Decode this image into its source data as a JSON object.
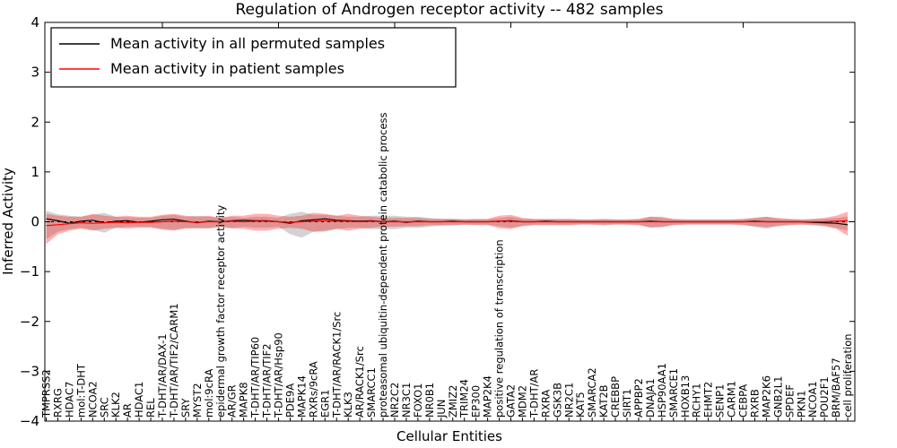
{
  "figure": {
    "title": "Regulation of Androgen receptor activity -- 482 samples",
    "xlabel": "Cellular Entities",
    "ylabel": "Inferred Activity",
    "background_color": "#ffffff",
    "axis_color": "#000000"
  },
  "legend": {
    "items": [
      {
        "label": "Mean activity in all permuted samples",
        "color": "#000000"
      },
      {
        "label": "Mean activity in patient samples",
        "color": "#ff0000"
      }
    ]
  },
  "chart_data": {
    "type": "line",
    "title": "Regulation of Androgen receptor activity -- 482 samples",
    "xlabel": "Cellular Entities",
    "ylabel": "Inferred Activity",
    "ylim": [
      -4,
      4
    ],
    "yticks": [
      -4,
      -3,
      -2,
      -1,
      0,
      1,
      2,
      3,
      4
    ],
    "grid": false,
    "legend_position": "upper left",
    "zero_line": {
      "style": "dashed",
      "color": "#000000"
    },
    "categories": [
      "TMPRSS2",
      "RXRG",
      "HDAC7",
      "mol:T-DHT",
      "NCOA2",
      "SRC",
      "KLK2",
      "AR",
      "HDAC1",
      "REL",
      "T-DHT/AR/DAX-1",
      "T-DHT/AR/TIF2/CARM1",
      "SRY",
      "MYST2",
      "mol:9cRA",
      "epidermal growth factor receptor activity",
      "AR/GR",
      "MAPK8",
      "T-DHT/AR/TIP60",
      "T-DHT/AR/TIF2",
      "T-DHT/AR/Hsp90",
      "PDE9A",
      "MAPK14",
      "RXRs/9cRA",
      "EGR1",
      "T-DHT/AR/RACK1/Src",
      "KLK3",
      "AR/RACK1/Src",
      "SMARCC1",
      "proteasomal ubiquitin-dependent protein catabolic process",
      "NR2C2",
      "NR3C1",
      "FOXO1",
      "NR0B1",
      "JUN",
      "ZMIZ2",
      "TRIM24",
      "EP300",
      "MAP2K4",
      "positive regulation of transcription",
      "GATA2",
      "MDM2",
      "T-DHT/AR",
      "RXRA",
      "GSK3B",
      "NR2C1",
      "KAT5",
      "SMARCA2",
      "KAT2B",
      "CREBBP",
      "SIRT1",
      "APPBP2",
      "DNAJA1",
      "HSP90AA1",
      "SMARCE1",
      "HOXB13",
      "RCHY1",
      "EHMT2",
      "SENP1",
      "CARM1",
      "CEBPA",
      "RXRB",
      "MAP2K6",
      "GNB2L1",
      "SPDEF",
      "PKN1",
      "NCOA1",
      "POU2F1",
      "BRM/BAF57",
      "cell proliferation"
    ],
    "series": [
      {
        "name": "Mean activity in all permuted samples",
        "color": "#000000",
        "style": "solid",
        "values": [
          0.06,
          0.02,
          -0.03,
          0.01,
          0.03,
          -0.02,
          0.01,
          0.02,
          -0.01,
          0.01,
          0.04,
          0.05,
          0.01,
          -0.02,
          0.01,
          0.0,
          0.02,
          0.03,
          0.02,
          0.02,
          0.0,
          -0.03,
          0.02,
          0.04,
          0.06,
          0.03,
          0.02,
          0.01,
          0.02,
          0.0,
          0.01,
          -0.01,
          0.01,
          0.0,
          0.0,
          0.01,
          0.0,
          0.0,
          0.0,
          0.01,
          0.02,
          0.0,
          0.0,
          0.01,
          0.0,
          0.0,
          0.0,
          0.0,
          0.0,
          0.0,
          0.0,
          0.0,
          0.01,
          0.0,
          0.0,
          0.0,
          0.0,
          0.0,
          0.0,
          0.0,
          0.0,
          0.01,
          0.0,
          0.0,
          0.0,
          0.0,
          -0.01,
          -0.02,
          -0.03,
          -0.06
        ]
      },
      {
        "name": "Mean activity in patient samples",
        "color": "#ff0000",
        "style": "solid",
        "values": [
          -0.08,
          -0.06,
          -0.04,
          -0.02,
          -0.03,
          -0.02,
          -0.01,
          -0.02,
          -0.01,
          -0.01,
          0.0,
          0.01,
          0.0,
          -0.01,
          0.0,
          0.0,
          0.01,
          0.0,
          0.01,
          0.01,
          0.0,
          -0.01,
          0.0,
          0.01,
          0.02,
          0.01,
          0.01,
          0.0,
          0.01,
          0.0,
          0.0,
          0.0,
          0.0,
          0.0,
          0.0,
          0.0,
          0.0,
          0.0,
          0.0,
          0.01,
          0.01,
          0.0,
          0.0,
          0.0,
          0.0,
          0.0,
          0.0,
          0.0,
          0.0,
          0.0,
          0.0,
          0.0,
          0.0,
          0.0,
          0.0,
          0.0,
          0.0,
          0.0,
          0.0,
          0.0,
          0.0,
          0.0,
          0.0,
          0.0,
          0.0,
          0.0,
          0.0,
          0.0,
          0.01,
          0.02
        ]
      }
    ],
    "bands": [
      {
        "name": "permuted-samples-range",
        "color": "#808080",
        "opacity": 0.35,
        "upper": [
          0.22,
          0.15,
          0.12,
          0.1,
          0.14,
          0.18,
          0.1,
          0.09,
          0.08,
          0.08,
          0.12,
          0.14,
          0.1,
          0.12,
          0.1,
          0.08,
          0.1,
          0.08,
          0.1,
          0.1,
          0.08,
          0.16,
          0.2,
          0.14,
          0.14,
          0.12,
          0.1,
          0.1,
          0.12,
          0.12,
          0.12,
          0.1,
          0.1,
          0.08,
          0.06,
          0.06,
          0.05,
          0.05,
          0.05,
          0.08,
          0.1,
          0.06,
          0.05,
          0.05,
          0.05,
          0.05,
          0.04,
          0.04,
          0.05,
          0.04,
          0.04,
          0.05,
          0.1,
          0.08,
          0.05,
          0.04,
          0.04,
          0.04,
          0.04,
          0.04,
          0.05,
          0.08,
          0.1,
          0.06,
          0.05,
          0.04,
          0.05,
          0.06,
          0.08,
          0.1
        ],
        "lower": [
          -0.35,
          -0.2,
          -0.15,
          -0.12,
          -0.16,
          -0.22,
          -0.12,
          -0.1,
          -0.1,
          -0.1,
          -0.14,
          -0.16,
          -0.12,
          -0.14,
          -0.12,
          -0.1,
          -0.12,
          -0.1,
          -0.12,
          -0.12,
          -0.1,
          -0.25,
          -0.32,
          -0.2,
          -0.2,
          -0.15,
          -0.12,
          -0.12,
          -0.15,
          -0.15,
          -0.15,
          -0.12,
          -0.12,
          -0.1,
          -0.08,
          -0.07,
          -0.06,
          -0.06,
          -0.06,
          -0.09,
          -0.12,
          -0.08,
          -0.06,
          -0.06,
          -0.06,
          -0.06,
          -0.05,
          -0.05,
          -0.06,
          -0.05,
          -0.05,
          -0.06,
          -0.12,
          -0.1,
          -0.06,
          -0.05,
          -0.05,
          -0.05,
          -0.05,
          -0.05,
          -0.06,
          -0.1,
          -0.14,
          -0.08,
          -0.06,
          -0.05,
          -0.06,
          -0.08,
          -0.12,
          -0.18
        ]
      },
      {
        "name": "patient-samples-range",
        "color": "#ff0000",
        "opacity": 0.3,
        "upper": [
          0.16,
          0.12,
          0.1,
          0.1,
          0.16,
          0.12,
          0.1,
          0.12,
          0.1,
          0.1,
          0.14,
          0.16,
          0.12,
          0.1,
          0.12,
          0.08,
          0.12,
          0.12,
          0.16,
          0.16,
          0.12,
          0.1,
          0.12,
          0.18,
          0.16,
          0.12,
          0.16,
          0.12,
          0.1,
          0.08,
          0.08,
          0.08,
          0.08,
          0.06,
          0.06,
          0.06,
          0.05,
          0.06,
          0.06,
          0.12,
          0.14,
          0.08,
          0.06,
          0.06,
          0.06,
          0.06,
          0.05,
          0.05,
          0.06,
          0.05,
          0.05,
          0.06,
          0.1,
          0.1,
          0.06,
          0.05,
          0.05,
          0.05,
          0.05,
          0.05,
          0.06,
          0.08,
          0.1,
          0.08,
          0.06,
          0.05,
          0.06,
          0.08,
          0.12,
          0.2
        ],
        "lower": [
          -0.45,
          -0.25,
          -0.18,
          -0.14,
          -0.18,
          -0.14,
          -0.12,
          -0.14,
          -0.12,
          -0.12,
          -0.16,
          -0.18,
          -0.14,
          -0.12,
          -0.14,
          -0.1,
          -0.14,
          -0.14,
          -0.18,
          -0.18,
          -0.14,
          -0.12,
          -0.14,
          -0.2,
          -0.18,
          -0.14,
          -0.18,
          -0.14,
          -0.12,
          -0.1,
          -0.1,
          -0.09,
          -0.09,
          -0.07,
          -0.07,
          -0.07,
          -0.06,
          -0.07,
          -0.07,
          -0.13,
          -0.15,
          -0.09,
          -0.07,
          -0.07,
          -0.07,
          -0.07,
          -0.06,
          -0.06,
          -0.07,
          -0.06,
          -0.06,
          -0.07,
          -0.11,
          -0.11,
          -0.07,
          -0.06,
          -0.06,
          -0.06,
          -0.06,
          -0.06,
          -0.07,
          -0.09,
          -0.11,
          -0.09,
          -0.07,
          -0.06,
          -0.07,
          -0.09,
          -0.14,
          -0.28
        ]
      }
    ]
  }
}
